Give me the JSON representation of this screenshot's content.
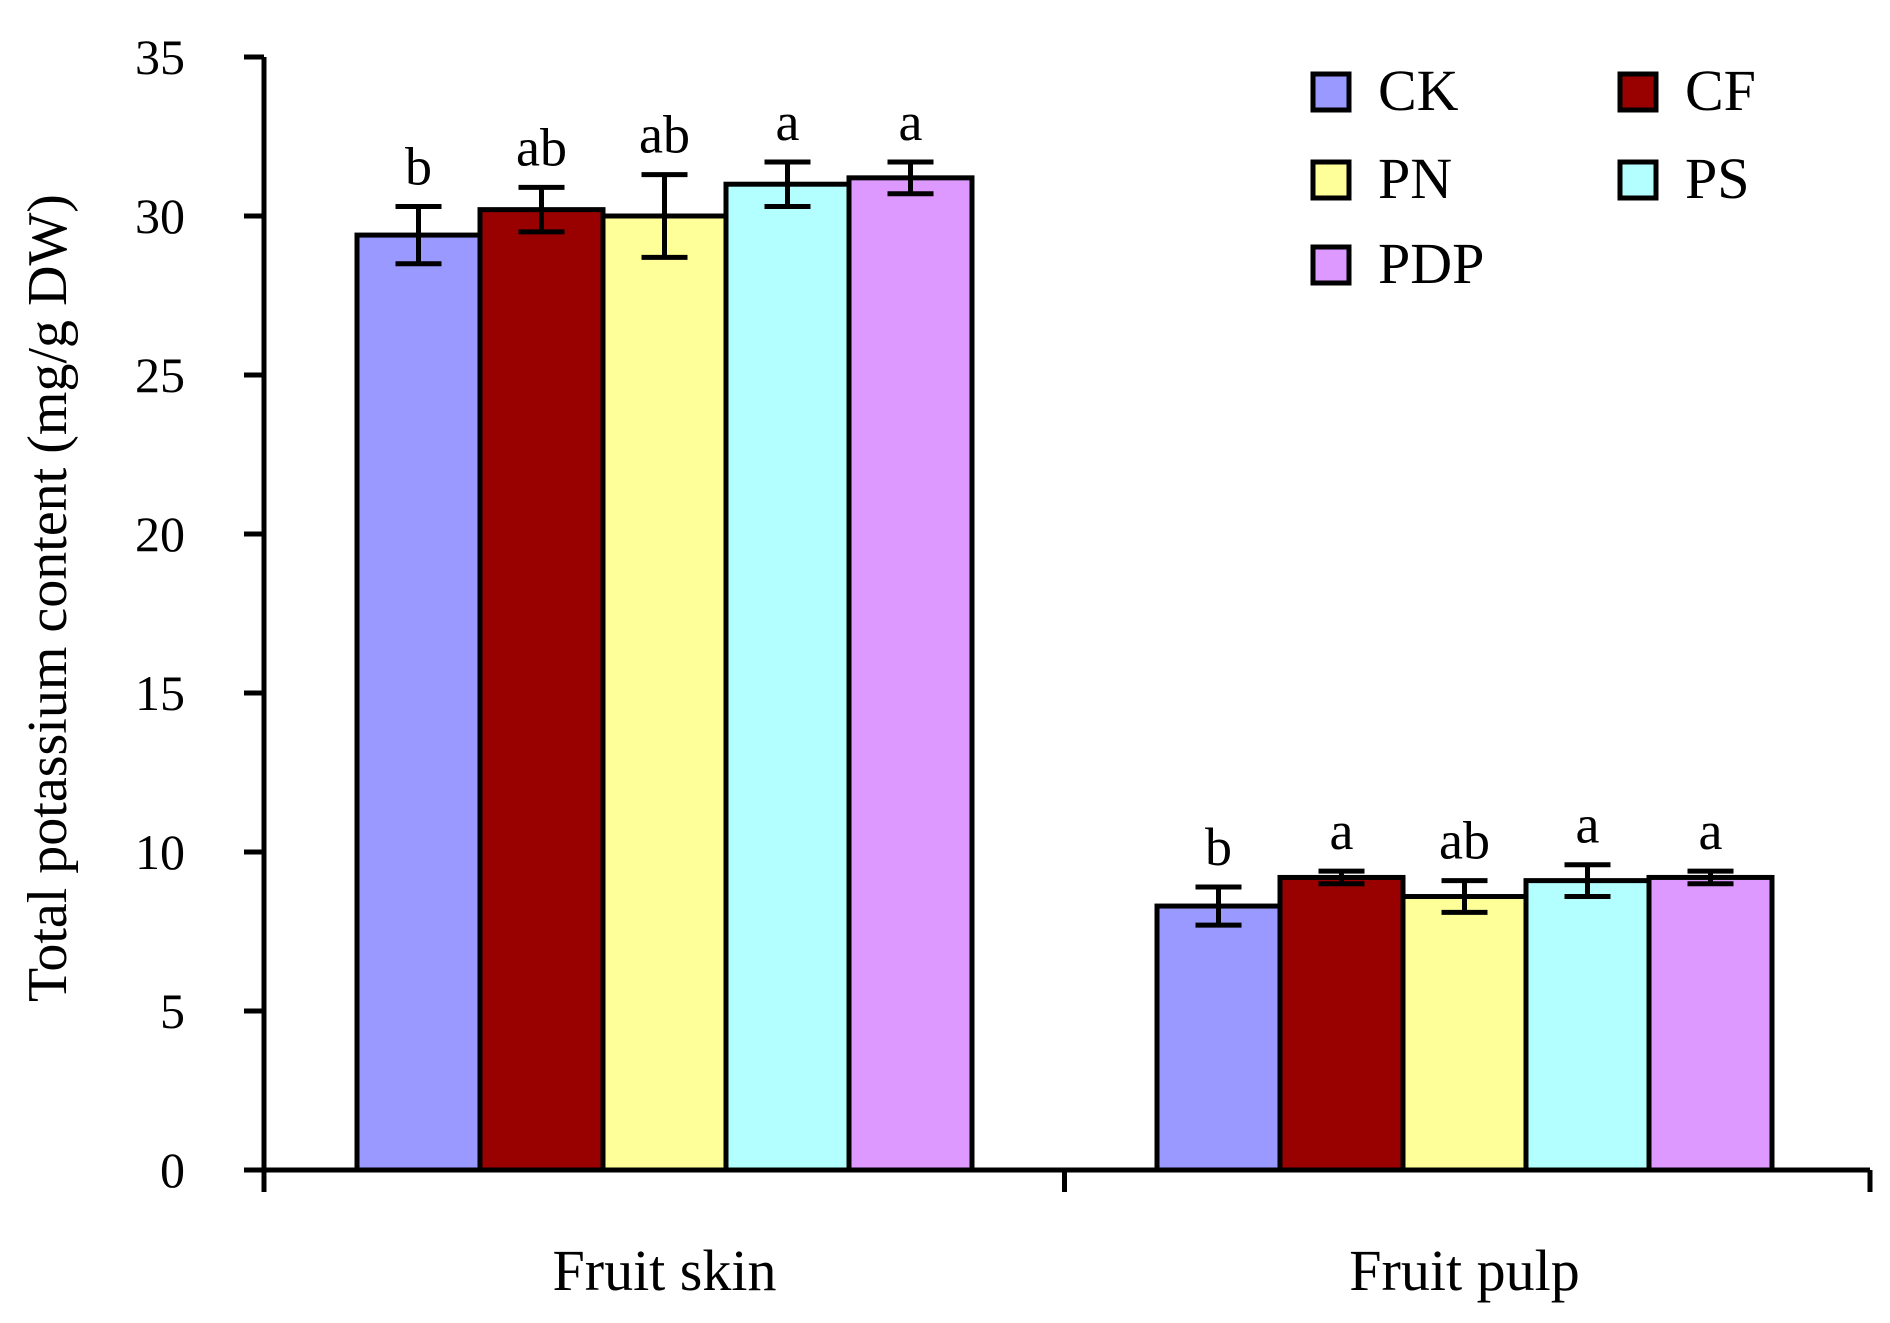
{
  "chart_data": {
    "type": "bar",
    "title": "",
    "xlabel": "",
    "ylabel": "Total potassium content (mg/g DW)",
    "ylim": [
      0,
      35
    ],
    "yticks": [
      0,
      5,
      10,
      15,
      20,
      25,
      30,
      35
    ],
    "grid": false,
    "legend_position": "top-right",
    "categories": [
      "Fruit skin",
      "Fruit pulp"
    ],
    "series": [
      {
        "name": "CK",
        "color": "#9999ff",
        "values": [
          29.4,
          8.3
        ],
        "errors": [
          0.9,
          0.6
        ],
        "labels": [
          "b",
          "b"
        ]
      },
      {
        "name": "CF",
        "color": "#990000",
        "values": [
          30.2,
          9.2
        ],
        "errors": [
          0.7,
          0.2
        ],
        "labels": [
          "ab",
          "a"
        ]
      },
      {
        "name": "PN",
        "color": "#ffff99",
        "values": [
          30.0,
          8.6
        ],
        "errors": [
          1.3,
          0.5
        ],
        "labels": [
          "ab",
          "ab"
        ]
      },
      {
        "name": "PS",
        "color": "#b3ffff",
        "values": [
          31.0,
          9.1
        ],
        "errors": [
          0.7,
          0.5
        ],
        "labels": [
          "a",
          "a"
        ]
      },
      {
        "name": "PDP",
        "color": "#dd99ff",
        "values": [
          31.2,
          9.2
        ],
        "errors": [
          0.5,
          0.2
        ],
        "labels": [
          "a",
          "a"
        ]
      }
    ]
  }
}
